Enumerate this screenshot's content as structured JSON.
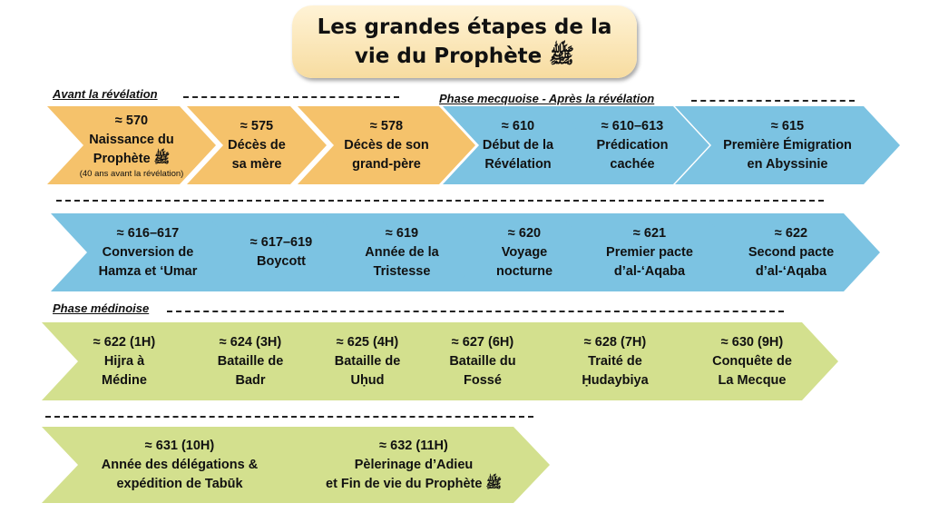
{
  "title": {
    "line1": "Les grandes étapes de la",
    "line2": "vie du Prophète ﷺ"
  },
  "phases": {
    "before": "Avant la révélation",
    "mecca": "Phase mecquoise - Après la révélation",
    "medina": "Phase médinoise"
  },
  "steps": [
    {
      "date": "≈ 570",
      "lines": [
        "Naissance du",
        "Prophète ﷺ"
      ],
      "note": "(40 ans avant la révélation)"
    },
    {
      "date": "≈ 575",
      "lines": [
        "Décès de",
        "sa mère"
      ]
    },
    {
      "date": "≈ 578",
      "lines": [
        "Décès de son",
        "grand-père"
      ]
    },
    {
      "date": "≈ 610",
      "lines": [
        "Début de la",
        "Révélation"
      ]
    },
    {
      "date": "≈ 610–613",
      "lines": [
        "Prédication",
        "cachée"
      ]
    },
    {
      "date": "≈ 615",
      "lines": [
        "Première Émigration",
        "en Abyssinie"
      ]
    },
    {
      "date": "≈ 616–617",
      "lines": [
        "Conversion de",
        "Hamza et ‘Umar"
      ]
    },
    {
      "date": "≈ 617–619",
      "lines": [
        "Boycott"
      ]
    },
    {
      "date": "≈ 619",
      "lines": [
        "Année de la",
        "Tristesse"
      ]
    },
    {
      "date": "≈ 620",
      "lines": [
        "Voyage",
        "nocturne"
      ]
    },
    {
      "date": "≈ 621",
      "lines": [
        "Premier pacte",
        "d’al-‘Aqaba"
      ]
    },
    {
      "date": "≈ 622",
      "lines": [
        "Second pacte",
        "d’al-‘Aqaba"
      ]
    },
    {
      "date": "≈ 622 (1H)",
      "lines": [
        "Hijra à",
        "Médine"
      ]
    },
    {
      "date": "≈ 624 (3H)",
      "lines": [
        "Bataille de",
        "Badr"
      ]
    },
    {
      "date": "≈ 625 (4H)",
      "lines": [
        "Bataille de",
        "Uḥud"
      ]
    },
    {
      "date": "≈ 627 (6H)",
      "lines": [
        "Bataille du",
        "Fossé"
      ]
    },
    {
      "date": "≈ 628 (7H)",
      "lines": [
        "Traité de",
        "Ḥudaybiya"
      ]
    },
    {
      "date": "≈ 630 (9H)",
      "lines": [
        "Conquête de",
        "La Mecque"
      ]
    },
    {
      "date": "≈ 631 (10H)",
      "lines": [
        "Année des délégations &",
        "expédition de Tabūk"
      ]
    },
    {
      "date": "≈ 632  (11H)",
      "lines": [
        "Pèlerinage d’Adieu",
        "et Fin de vie du Prophète ﷺ"
      ]
    }
  ],
  "colors": {
    "before": "#f5c26b",
    "mecca": "#7cc3e2",
    "medina": "#d3e08e"
  }
}
